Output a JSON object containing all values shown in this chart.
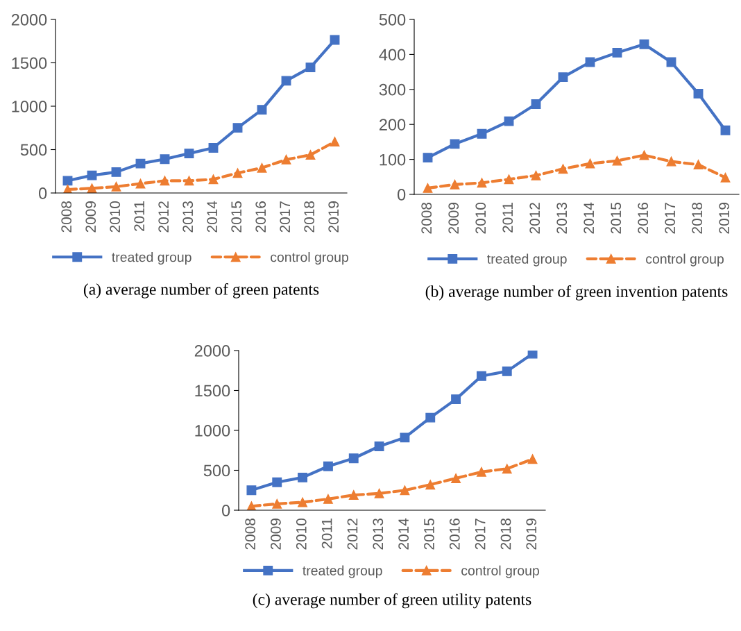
{
  "chart_data": [
    {
      "type": "line",
      "categories": [
        "2008",
        "2009",
        "2010",
        "2011",
        "2012",
        "2013",
        "2014",
        "2015",
        "2016",
        "2017",
        "2018",
        "2019"
      ],
      "ylim": [
        0,
        2000
      ],
      "yticks": [
        0,
        500,
        1000,
        1500,
        2000
      ],
      "grid": false,
      "legend": "bottom",
      "annotations": [
        "(a) average number of green patents"
      ],
      "series": [
        {
          "name": "treated group",
          "color": "#4472c4",
          "marker": "square",
          "line_style": "solid",
          "values": [
            141,
            203,
            241,
            339,
            390,
            455,
            520,
            751,
            959,
            1293,
            1447,
            1764
          ]
        },
        {
          "name": "control group",
          "color": "#ed7d31",
          "marker": "triangle",
          "line_style": "dashed",
          "values": [
            40,
            54,
            73,
            108,
            141,
            141,
            157,
            230,
            290,
            385,
            439,
            591
          ]
        }
      ]
    },
    {
      "type": "line",
      "categories": [
        "2008",
        "2009",
        "2010",
        "2011",
        "2012",
        "2013",
        "2014",
        "2015",
        "2016",
        "2017",
        "2018",
        "2019"
      ],
      "ylim": [
        0,
        500
      ],
      "yticks": [
        0,
        100,
        200,
        300,
        400,
        500
      ],
      "grid": false,
      "legend": "bottom",
      "annotations": [
        "(b) average number of green invention patents"
      ],
      "series": [
        {
          "name": "treated group",
          "color": "#4472c4",
          "marker": "square",
          "line_style": "solid",
          "values": [
            105,
            144,
            173,
            209,
            258,
            335,
            378,
            405,
            429,
            378,
            288,
            183
          ]
        },
        {
          "name": "control group",
          "color": "#ed7d31",
          "marker": "triangle",
          "line_style": "dashed",
          "values": [
            18,
            28,
            33,
            43,
            54,
            73,
            88,
            96,
            112,
            94,
            85,
            48
          ]
        }
      ]
    },
    {
      "type": "line",
      "categories": [
        "2008",
        "2009",
        "2010",
        "2011",
        "2012",
        "2013",
        "2014",
        "2015",
        "2016",
        "2017",
        "2018",
        "2019"
      ],
      "ylim": [
        0,
        2000
      ],
      "yticks": [
        0,
        500,
        1000,
        1500,
        2000
      ],
      "grid": false,
      "legend": "bottom",
      "annotations": [
        "(c) average number of green utility patents"
      ],
      "series": [
        {
          "name": "treated group",
          "color": "#4472c4",
          "marker": "square",
          "line_style": "solid",
          "values": [
            250,
            350,
            410,
            550,
            650,
            800,
            910,
            1160,
            1390,
            1680,
            1740,
            1960
          ]
        },
        {
          "name": "control group",
          "color": "#ed7d31",
          "marker": "triangle",
          "line_style": "dashed",
          "values": [
            50,
            80,
            100,
            140,
            190,
            210,
            250,
            320,
            400,
            480,
            520,
            640
          ]
        }
      ]
    }
  ]
}
